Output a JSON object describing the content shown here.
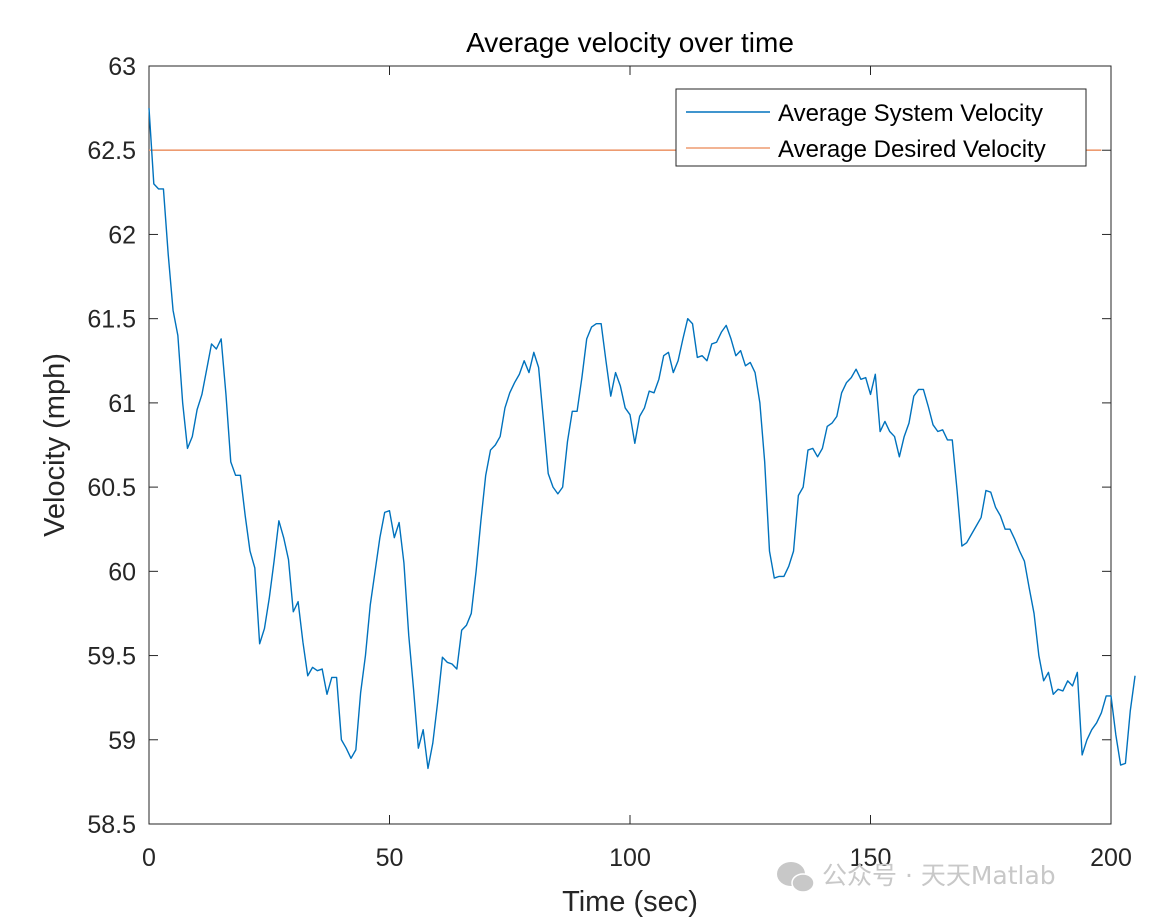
{
  "chart_data": {
    "type": "line",
    "title": "Average velocity over time",
    "xlabel": "Time (sec)",
    "ylabel": "Velocity (mph)",
    "xlim": [
      0,
      200
    ],
    "ylim": [
      58.5,
      63
    ],
    "xticks": [
      "0",
      "50",
      "100",
      "150",
      "200"
    ],
    "yticks": [
      "58.5",
      "59",
      "59.5",
      "60",
      "60.5",
      "61",
      "61.5",
      "62",
      "62.5",
      "63"
    ],
    "grid": false,
    "legend_location": "top-right",
    "series": [
      {
        "name": "Average System Velocity",
        "color": "#0072BD",
        "x_start": 0,
        "x_step": 1,
        "values": [
          62.75,
          62.3,
          62.27,
          62.27,
          61.88,
          61.55,
          61.4,
          61.0,
          60.73,
          60.8,
          60.96,
          61.05,
          61.2,
          61.35,
          61.32,
          61.38,
          61.05,
          60.65,
          60.57,
          60.57,
          60.33,
          60.12,
          60.02,
          59.57,
          59.66,
          59.84,
          60.06,
          60.3,
          60.2,
          60.07,
          59.76,
          59.82,
          59.58,
          59.38,
          59.43,
          59.41,
          59.42,
          59.27,
          59.37,
          59.37,
          59.0,
          58.95,
          58.89,
          58.94,
          59.28,
          59.5,
          59.8,
          60.0,
          60.2,
          60.35,
          60.36,
          60.2,
          60.29,
          60.05,
          59.62,
          59.3,
          58.95,
          59.06,
          58.83,
          58.98,
          59.22,
          59.49,
          59.46,
          59.45,
          59.42,
          59.65,
          59.68,
          59.75,
          60.0,
          60.3,
          60.57,
          60.72,
          60.75,
          60.8,
          60.97,
          61.06,
          61.12,
          61.17,
          61.25,
          61.18,
          61.3,
          61.21,
          60.9,
          60.58,
          60.5,
          60.46,
          60.5,
          60.77,
          60.95,
          60.95,
          61.15,
          61.38,
          61.45,
          61.47,
          61.47,
          61.25,
          61.04,
          61.18,
          61.1,
          60.97,
          60.93,
          60.76,
          60.92,
          60.97,
          61.07,
          61.06,
          61.14,
          61.28,
          61.3,
          61.18,
          61.25,
          61.38,
          61.5,
          61.47,
          61.27,
          61.28,
          61.25,
          61.35,
          61.36,
          61.42,
          61.46,
          61.38,
          61.28,
          61.31,
          61.22,
          61.24,
          61.18,
          61.0,
          60.65,
          60.12,
          59.96,
          59.97,
          59.97,
          60.03,
          60.12,
          60.45,
          60.5,
          60.72,
          60.73,
          60.68,
          60.73,
          60.86,
          60.88,
          60.92,
          61.06,
          61.12,
          61.15,
          61.2,
          61.14,
          61.15,
          61.05,
          61.17,
          60.83,
          60.89,
          60.83,
          60.8,
          60.68,
          60.8,
          60.88,
          61.04,
          61.08,
          61.08,
          60.98,
          60.87,
          60.83,
          60.84,
          60.78,
          60.78,
          60.48,
          60.15,
          60.17,
          60.22,
          60.27,
          60.32,
          60.48,
          60.47,
          60.38,
          60.33,
          60.25,
          60.25,
          60.19,
          60.12,
          60.06,
          59.9,
          59.75,
          59.5,
          59.35,
          59.4,
          59.27,
          59.3,
          59.29,
          59.35,
          59.32,
          59.4,
          58.91,
          59.0,
          59.06,
          59.1,
          59.16,
          59.26,
          59.26,
          59.03,
          58.85,
          58.86,
          59.17,
          59.38
        ]
      },
      {
        "name": "Average Desired Velocity",
        "color": "#D95319",
        "x": [
          0,
          198
        ],
        "values": [
          62.5,
          62.5
        ]
      }
    ]
  },
  "watermark": {
    "text": "公众号 · 天天Matlab",
    "icon": "wechat-icon"
  }
}
